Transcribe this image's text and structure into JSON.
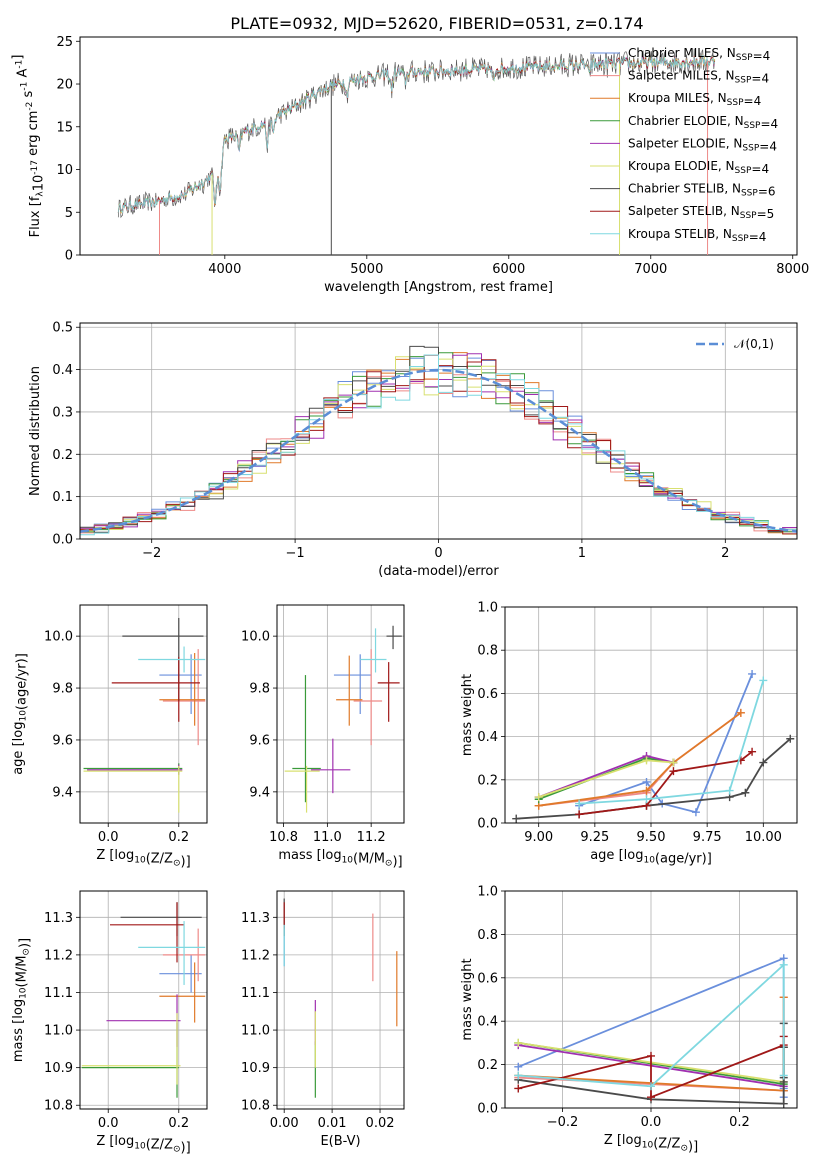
{
  "figure_title": "PLATE=0932, MJD=52620, FIBERID=0531, z=0.174",
  "models": [
    {
      "name": "Chabrier MILES, N$_{SSP}$=4",
      "color": "#6a8fdc"
    },
    {
      "name": "Salpeter MILES, N$_{SSP}$=4",
      "color": "#ee8a88"
    },
    {
      "name": "Kroupa MILES, N$_{SSP}$=4",
      "color": "#e07a2a"
    },
    {
      "name": "Chabrier ELODIE, N$_{SSP}$=4",
      "color": "#3a9a3a"
    },
    {
      "name": "Salpeter ELODIE, N$_{SSP}$=4",
      "color": "#a030b0"
    },
    {
      "name": "Kroupa ELODIE, N$_{SSP}$=4",
      "color": "#d8e070"
    },
    {
      "name": "Chabrier STELIB, N$_{SSP}$=6",
      "color": "#4a4a4a"
    },
    {
      "name": "Salpeter STELIB, N$_{SSP}$=5",
      "color": "#a01818"
    },
    {
      "name": "Kroupa STELIB, N$_{SSP}$=4",
      "color": "#7fd8e0"
    }
  ],
  "chart_data": [
    {
      "id": "spectrum",
      "type": "line",
      "xlabel": "wavelength [Angstrom, rest frame]",
      "ylabel": "Flux [f$_\\lambda$10$^{-17}$ erg cm$^{-2}$ s$^{-1}$ A$^{-1}$]",
      "xlim": [
        2980,
        8030
      ],
      "ylim": [
        0,
        25.5
      ],
      "xticks": [
        4000,
        5000,
        6000,
        7000,
        8000
      ],
      "yticks": [
        0,
        5,
        10,
        15,
        20,
        25
      ],
      "x_range": [
        3250,
        7450
      ],
      "continuum": [
        [
          3250,
          5.5
        ],
        [
          3500,
          6.2
        ],
        [
          3700,
          7.0
        ],
        [
          3850,
          8.5
        ],
        [
          3950,
          10
        ],
        [
          4000,
          13.5
        ],
        [
          4300,
          15.5
        ],
        [
          4500,
          17.5
        ],
        [
          4700,
          19.5
        ],
        [
          4900,
          20.5
        ],
        [
          5200,
          21.3
        ],
        [
          5600,
          21.6
        ],
        [
          5900,
          21.8
        ],
        [
          6200,
          22.0
        ],
        [
          6600,
          22.3
        ],
        [
          7000,
          22.5
        ],
        [
          7450,
          22.7
        ]
      ],
      "absorption_features": [
        [
          3933,
          4
        ],
        [
          3968,
          3.5
        ],
        [
          4101,
          2
        ],
        [
          4300,
          2.5
        ],
        [
          4340,
          1.5
        ],
        [
          4861,
          1.5
        ],
        [
          5175,
          1.8
        ],
        [
          5270,
          1.0
        ],
        [
          5890,
          1.5
        ],
        [
          6563,
          1.0
        ]
      ],
      "dropouts": [
        [
          4750,
          0
        ],
        [
          3540,
          0
        ],
        [
          3910,
          0
        ],
        [
          6780,
          0
        ],
        [
          7400,
          0
        ]
      ]
    },
    {
      "id": "residuals",
      "type": "step",
      "xlabel": "(data-model)/error",
      "ylabel": "Normed distribution",
      "xlim": [
        -2.5,
        2.5
      ],
      "ylim": [
        0,
        0.51
      ],
      "xticks": [
        -2,
        -1,
        0,
        1,
        2
      ],
      "yticks": [
        0.0,
        0.1,
        0.2,
        0.3,
        0.4,
        0.5
      ],
      "bin_width": 0.1,
      "gaussian_label": "$\\mathcal{N}(0,1)$",
      "gaussian_color": "#5b8ed6"
    },
    {
      "id": "age_vs_Z",
      "type": "errorbar",
      "xlabel": "Z [log$_{10}$(Z/Z$_\\odot$)]",
      "ylabel": "age  [log$_{10}$(age/yr)]",
      "xlim": [
        -0.08,
        0.28
      ],
      "ylim": [
        9.28,
        10.12
      ],
      "xticks": [
        0.0,
        0.2
      ],
      "yticks": [
        9.4,
        9.6,
        9.8,
        10.0
      ],
      "points": [
        {
          "model": 0,
          "x": 0.235,
          "y": 9.85,
          "xerr": [
            0.09,
            0.03
          ],
          "yerr": [
            0.15,
            0.08
          ]
        },
        {
          "model": 1,
          "x": 0.255,
          "y": 9.75,
          "xerr": [
            0.1,
            0.02
          ],
          "yerr": [
            0.17,
            0.2
          ]
        },
        {
          "model": 2,
          "x": 0.245,
          "y": 9.755,
          "xerr": [
            0.1,
            0.03
          ],
          "yerr": [
            0.1,
            0.18
          ]
        },
        {
          "model": 3,
          "x": 0.2,
          "y": 9.49,
          "xerr": [
            0.27,
            0.01
          ],
          "yerr": [
            0.02,
            0.02
          ]
        },
        {
          "model": 4,
          "x": 0.2,
          "y": 9.485,
          "xerr": [
            0.26,
            0.01
          ],
          "yerr": [
            0.02,
            0.02
          ]
        },
        {
          "model": 5,
          "x": 0.2,
          "y": 9.48,
          "xerr": [
            0.27,
            0.01
          ],
          "yerr": [
            0.16,
            0.02
          ]
        },
        {
          "model": 6,
          "x": 0.2,
          "y": 10.0,
          "xerr": [
            0.16,
            0.07
          ],
          "yerr": [
            0.25,
            0.07
          ]
        },
        {
          "model": 7,
          "x": 0.2,
          "y": 9.82,
          "xerr": [
            0.19,
            0.06
          ],
          "yerr": [
            0.15,
            0.1
          ]
        },
        {
          "model": 8,
          "x": 0.215,
          "y": 9.91,
          "xerr": [
            0.13,
            0.06
          ],
          "yerr": [
            0.05,
            0.05
          ]
        }
      ]
    },
    {
      "id": "age_vs_mass",
      "type": "errorbar",
      "xlabel": "mass [log$_{10}$(M/M$_\\odot$)]",
      "ylabel": "",
      "xlim": [
        10.77,
        11.35
      ],
      "ylim": [
        9.28,
        10.12
      ],
      "xticks": [
        10.8,
        11.0,
        11.2
      ],
      "yticks": [
        9.4,
        9.6,
        9.8,
        10.0
      ],
      "points": [
        {
          "model": 0,
          "x": 11.15,
          "y": 9.85,
          "xerr": [
            0.12,
            0.05
          ],
          "yerr": [
            0.15,
            0.08
          ]
        },
        {
          "model": 1,
          "x": 11.2,
          "y": 9.75,
          "xerr": [
            0.08,
            0.05
          ],
          "yerr": [
            0.17,
            0.2
          ]
        },
        {
          "model": 2,
          "x": 11.1,
          "y": 9.755,
          "xerr": [
            0.06,
            0.06
          ],
          "yerr": [
            0.1,
            0.17
          ]
        },
        {
          "model": 3,
          "x": 10.9,
          "y": 9.49,
          "xerr": [
            0.06,
            0.07
          ],
          "yerr": [
            0.13,
            0.36
          ]
        },
        {
          "model": 4,
          "x": 11.025,
          "y": 9.485,
          "xerr": [
            0.1,
            0.08
          ],
          "yerr": [
            0.09,
            0.12
          ]
        },
        {
          "model": 5,
          "x": 10.905,
          "y": 9.48,
          "xerr": [
            0.1,
            0.06
          ],
          "yerr": [
            0.16,
            0.02
          ]
        },
        {
          "model": 6,
          "x": 11.3,
          "y": 10.0,
          "xerr": [
            0.03,
            0.04
          ],
          "yerr": [
            0.05,
            0.04
          ]
        },
        {
          "model": 7,
          "x": 11.28,
          "y": 9.82,
          "xerr": [
            0.05,
            0.05
          ],
          "yerr": [
            0.15,
            0.08
          ]
        },
        {
          "model": 8,
          "x": 11.22,
          "y": 9.91,
          "xerr": [
            0.07,
            0.05
          ],
          "yerr": [
            0.05,
            0.12
          ]
        }
      ]
    },
    {
      "id": "weight_vs_age",
      "type": "line",
      "xlabel": "age  [log$_{10}$(age/yr)]",
      "ylabel": "mass weight",
      "xlim": [
        8.85,
        10.15
      ],
      "ylim": [
        0,
        1.0
      ],
      "xticks": [
        9.0,
        9.25,
        9.5,
        9.75,
        10.0
      ],
      "yticks": [
        0.0,
        0.2,
        0.4,
        0.6,
        0.8,
        1.0
      ],
      "series": [
        {
          "model": 0,
          "x": [
            9.18,
            9.48,
            9.55,
            9.7,
            9.95
          ],
          "y": [
            0.08,
            0.19,
            0.09,
            0.05,
            0.69
          ]
        },
        {
          "model": 1,
          "x": [
            9.0,
            9.48,
            9.6,
            9.9
          ],
          "y": [
            0.08,
            0.14,
            0.28,
            0.51
          ]
        },
        {
          "model": 2,
          "x": [
            9.0,
            9.48,
            9.6,
            9.9
          ],
          "y": [
            0.08,
            0.15,
            0.28,
            0.51
          ]
        },
        {
          "model": 3,
          "x": [
            9.0,
            9.48,
            9.6
          ],
          "y": [
            0.11,
            0.3,
            0.28
          ]
        },
        {
          "model": 4,
          "x": [
            9.0,
            9.48,
            9.6
          ],
          "y": [
            0.12,
            0.31,
            0.28
          ]
        },
        {
          "model": 5,
          "x": [
            9.0,
            9.48,
            9.6
          ],
          "y": [
            0.12,
            0.29,
            0.28
          ]
        },
        {
          "model": 6,
          "x": [
            8.9,
            9.18,
            9.48,
            9.85,
            9.92,
            10.0,
            10.12
          ],
          "y": [
            0.02,
            0.04,
            0.08,
            0.12,
            0.14,
            0.28,
            0.39
          ]
        },
        {
          "model": 7,
          "x": [
            9.18,
            9.48,
            9.6,
            9.9,
            9.95
          ],
          "y": [
            0.04,
            0.08,
            0.24,
            0.29,
            0.33
          ]
        },
        {
          "model": 8,
          "x": [
            9.18,
            9.48,
            9.85,
            10.0
          ],
          "y": [
            0.09,
            0.11,
            0.15,
            0.66
          ]
        }
      ]
    },
    {
      "id": "mass_vs_Z",
      "type": "errorbar",
      "xlabel": "Z [log$_{10}$(Z/Z$_\\odot$)]",
      "ylabel": "mass [log$_{10}$(M/M$_\\odot$)]",
      "xlim": [
        -0.08,
        0.28
      ],
      "ylim": [
        10.79,
        11.37
      ],
      "xticks": [
        0.0,
        0.2
      ],
      "yticks": [
        10.8,
        10.9,
        11.0,
        11.1,
        11.2,
        11.3
      ],
      "points": [
        {
          "model": 0,
          "x": 0.235,
          "y": 11.15,
          "xerr": [
            0.09,
            0.03
          ],
          "yerr": [
            0.05,
            0.05
          ]
        },
        {
          "model": 1,
          "x": 0.255,
          "y": 11.2,
          "xerr": [
            0.1,
            0.02
          ],
          "yerr": [
            0.07,
            0.07
          ]
        },
        {
          "model": 2,
          "x": 0.245,
          "y": 11.09,
          "xerr": [
            0.1,
            0.03
          ],
          "yerr": [
            0.07,
            0.09
          ]
        },
        {
          "model": 3,
          "x": 0.195,
          "y": 10.9,
          "xerr": [
            0.27,
            0.005
          ],
          "yerr": [
            0.08,
            0.12
          ]
        },
        {
          "model": 4,
          "x": 0.195,
          "y": 11.025,
          "xerr": [
            0.2,
            0.01
          ],
          "yerr": [
            0.07,
            0.07
          ]
        },
        {
          "model": 5,
          "x": 0.195,
          "y": 10.905,
          "xerr": [
            0.27,
            0.01
          ],
          "yerr": [
            0.05,
            0.14
          ]
        },
        {
          "model": 6,
          "x": 0.195,
          "y": 11.3,
          "xerr": [
            0.16,
            0.07
          ],
          "yerr": [
            0.05,
            0.04
          ]
        },
        {
          "model": 7,
          "x": 0.195,
          "y": 11.28,
          "xerr": [
            0.19,
            0.02
          ],
          "yerr": [
            0.1,
            0.06
          ]
        },
        {
          "model": 8,
          "x": 0.215,
          "y": 11.22,
          "xerr": [
            0.13,
            0.06
          ],
          "yerr": [
            0.1,
            0.07
          ]
        }
      ]
    },
    {
      "id": "mass_vs_ebv",
      "type": "errorbar",
      "xlabel": "E(B-V)",
      "ylabel": "",
      "xlim": [
        -0.0015,
        0.025
      ],
      "ylim": [
        10.79,
        11.37
      ],
      "xticks": [
        0.0,
        0.01,
        0.02
      ],
      "yticks": [
        10.8,
        10.9,
        11.0,
        11.1,
        11.2,
        11.3
      ],
      "points": [
        {
          "model": 0,
          "x": 0.0,
          "y": 11.2,
          "xerr": [
            0,
            0
          ],
          "yerr": [
            0.03,
            0.08
          ]
        },
        {
          "model": 1,
          "x": 0.0185,
          "y": 11.22,
          "xerr": [
            0,
            0
          ],
          "yerr": [
            0.09,
            0.09
          ]
        },
        {
          "model": 2,
          "x": 0.0235,
          "y": 11.09,
          "xerr": [
            0,
            0
          ],
          "yerr": [
            0.08,
            0.12
          ]
        },
        {
          "model": 3,
          "x": 0.0065,
          "y": 10.9,
          "xerr": [
            0,
            0
          ],
          "yerr": [
            0.08,
            0.07
          ]
        },
        {
          "model": 4,
          "x": 0.0065,
          "y": 11.02,
          "xerr": [
            0,
            0
          ],
          "yerr": [
            0.06,
            0.06
          ]
        },
        {
          "model": 5,
          "x": 0.0065,
          "y": 10.95,
          "xerr": [
            0,
            0
          ],
          "yerr": [
            0.05,
            0.1
          ]
        },
        {
          "model": 6,
          "x": 0.0,
          "y": 11.3,
          "xerr": [
            0,
            0
          ],
          "yerr": [
            0.05,
            0.05
          ]
        },
        {
          "model": 7,
          "x": 0.0,
          "y": 11.3,
          "xerr": [
            0,
            0
          ],
          "yerr": [
            0.03,
            0.04
          ]
        },
        {
          "model": 8,
          "x": 0.0,
          "y": 11.22,
          "xerr": [
            0,
            0
          ],
          "yerr": [
            0.05,
            0.06
          ]
        }
      ]
    },
    {
      "id": "weight_vs_Z",
      "type": "line",
      "xlabel": "Z [log$_{10}$(Z/Z$_\\odot$)]",
      "ylabel": "mass weight",
      "xlim": [
        -0.33,
        0.33
      ],
      "ylim": [
        0,
        1.0
      ],
      "xticks": [
        -0.2,
        0.0,
        0.2
      ],
      "yticks": [
        0.0,
        0.2,
        0.4,
        0.6,
        0.8,
        1.0
      ],
      "series": [
        {
          "model": 0,
          "x": [
            -0.3,
            0.3,
            0.3,
            0.3,
            0.3
          ],
          "y": [
            0.19,
            0.69,
            0.05,
            0.09,
            0.08
          ]
        },
        {
          "model": 1,
          "x": [
            -0.3,
            0.3,
            0.3,
            0.3
          ],
          "y": [
            0.14,
            0.08,
            0.28,
            0.51
          ]
        },
        {
          "model": 2,
          "x": [
            -0.3,
            0.3,
            0.3,
            0.3
          ],
          "y": [
            0.15,
            0.08,
            0.28,
            0.51
          ]
        },
        {
          "model": 3,
          "x": [
            -0.3,
            0.3,
            0.3
          ],
          "y": [
            0.3,
            0.11,
            0.28
          ]
        },
        {
          "model": 4,
          "x": [
            -0.3,
            0.3,
            0.3
          ],
          "y": [
            0.29,
            0.1,
            0.28
          ]
        },
        {
          "model": 5,
          "x": [
            -0.3,
            0.3,
            0.3
          ],
          "y": [
            0.3,
            0.12,
            0.28
          ]
        },
        {
          "model": 6,
          "x": [
            -0.3,
            0.0,
            0.3,
            0.3,
            0.3,
            0.3,
            0.3
          ],
          "y": [
            0.13,
            0.04,
            0.02,
            0.12,
            0.14,
            0.28,
            0.39
          ]
        },
        {
          "model": 7,
          "x": [
            -0.3,
            0.0,
            0.0,
            0.3,
            0.3
          ],
          "y": [
            0.09,
            0.24,
            0.05,
            0.29,
            0.33
          ]
        },
        {
          "model": 8,
          "x": [
            -0.3,
            0.0,
            0.3,
            0.3
          ],
          "y": [
            0.15,
            0.1,
            0.66,
            0.15
          ]
        }
      ]
    }
  ]
}
